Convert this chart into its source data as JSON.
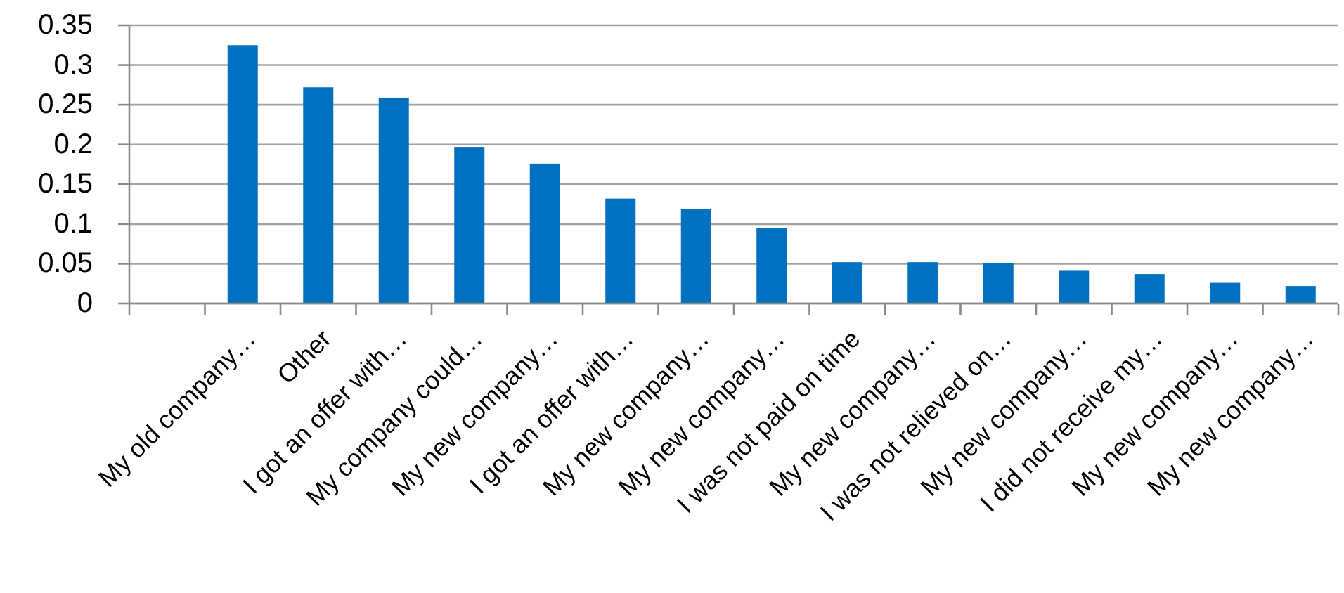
{
  "chart_data": {
    "type": "bar",
    "categories": [
      null,
      "My old company…",
      "Other",
      "I got an offer with…",
      "My company could…",
      "My new company…",
      "I got an offer with…",
      "My new company…",
      "My new company…",
      "I was not paid on time",
      "My new company…",
      "I was not relieved on…",
      "My new company…",
      "I did not receive my…",
      "My new company…",
      "My new company…"
    ],
    "values": [
      null,
      0.325,
      0.272,
      0.259,
      0.197,
      0.176,
      0.132,
      0.119,
      0.095,
      0.052,
      0.052,
      0.051,
      0.042,
      0.037,
      0.026,
      0.022
    ],
    "color": "#0070c0",
    "ylim": [
      0,
      0.35
    ],
    "yticks": [
      0,
      0.05,
      0.1,
      0.15,
      0.2,
      0.25,
      0.3,
      0.35
    ],
    "grid": "y"
  }
}
